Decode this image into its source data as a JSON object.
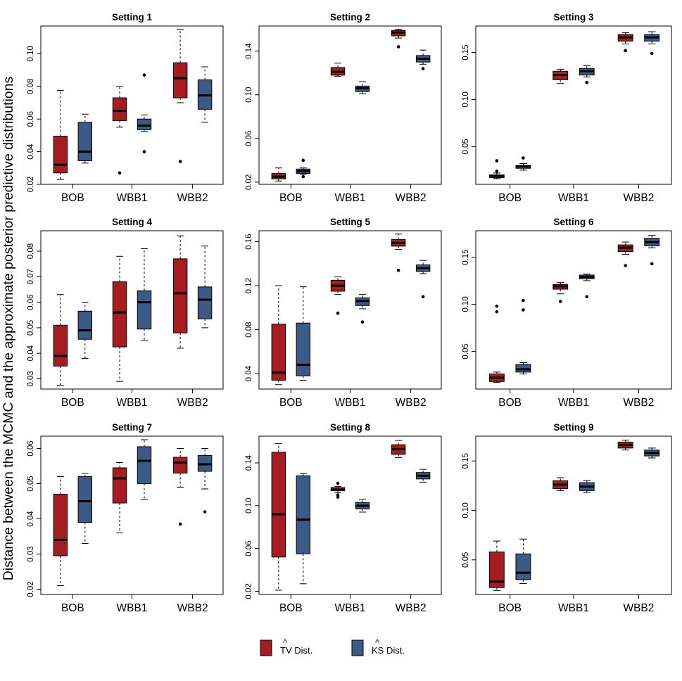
{
  "figure": {
    "ylabel": "Distance between the MCMC and the approximate posterior predictive distributions",
    "colors": {
      "tv": "#a51d20",
      "ks": "#3c5a85"
    }
  },
  "legend": {
    "placement": "bottom-center",
    "items": [
      {
        "label": "TV Dist.",
        "hat_over": "TV",
        "series": "tv"
      },
      {
        "label": "KS Dist.",
        "hat_over": "KS",
        "series": "ks"
      }
    ]
  },
  "chart_data": [
    {
      "type": "boxplot",
      "title": "Setting 1",
      "categories": [
        "BOB",
        "WBB1",
        "WBB2"
      ],
      "ylim": [
        0.02,
        0.117
      ],
      "yticks": [
        0.02,
        0.04,
        0.06,
        0.08,
        0.1
      ],
      "ytick_labels": [
        "0.02",
        "0.04",
        "0.06",
        "0.08",
        "0.10"
      ],
      "series": [
        {
          "name": "TV Dist.",
          "key": "tv",
          "boxes": [
            {
              "wlo": 0.023,
              "q1": 0.027,
              "med": 0.032,
              "q3": 0.0495,
              "whi": 0.0775,
              "out": []
            },
            {
              "wlo": 0.055,
              "q1": 0.059,
              "med": 0.065,
              "q3": 0.073,
              "whi": 0.08,
              "out": [
                0.027
              ]
            },
            {
              "wlo": 0.07,
              "q1": 0.073,
              "med": 0.085,
              "q3": 0.0945,
              "whi": 0.115,
              "out": [
                0.034
              ]
            }
          ]
        },
        {
          "name": "KS Dist.",
          "key": "ks",
          "boxes": [
            {
              "wlo": 0.033,
              "q1": 0.0345,
              "med": 0.04,
              "q3": 0.058,
              "whi": 0.063,
              "out": []
            },
            {
              "wlo": 0.0525,
              "q1": 0.0535,
              "med": 0.056,
              "q3": 0.06,
              "whi": 0.0625,
              "out": [
                0.04,
                0.087
              ]
            },
            {
              "wlo": 0.058,
              "q1": 0.066,
              "med": 0.0745,
              "q3": 0.084,
              "whi": 0.092,
              "out": []
            }
          ]
        }
      ]
    },
    {
      "type": "boxplot",
      "title": "Setting 2",
      "categories": [
        "BOB",
        "WBB1",
        "WBB2"
      ],
      "ylim": [
        0.018,
        0.163
      ],
      "yticks": [
        0.02,
        0.06,
        0.1,
        0.14
      ],
      "ytick_labels": [
        "0.02",
        "0.06",
        "0.10",
        "0.14"
      ],
      "series": [
        {
          "name": "TV Dist.",
          "key": "tv",
          "boxes": [
            {
              "wlo": 0.021,
              "q1": 0.023,
              "med": 0.025,
              "q3": 0.028,
              "whi": 0.033,
              "out": []
            },
            {
              "wlo": 0.117,
              "q1": 0.118,
              "med": 0.121,
              "q3": 0.125,
              "whi": 0.129,
              "out": []
            },
            {
              "wlo": 0.152,
              "q1": 0.154,
              "med": 0.157,
              "q3": 0.159,
              "whi": 0.16,
              "out": [
                0.144
              ]
            }
          ]
        },
        {
          "name": "KS Dist.",
          "key": "ks",
          "boxes": [
            {
              "wlo": 0.027,
              "q1": 0.028,
              "med": 0.03,
              "q3": 0.032,
              "whi": 0.033,
              "out": [
                0.025,
                0.04
              ]
            },
            {
              "wlo": 0.101,
              "q1": 0.103,
              "med": 0.106,
              "q3": 0.108,
              "whi": 0.112,
              "out": []
            },
            {
              "wlo": 0.128,
              "q1": 0.13,
              "med": 0.133,
              "q3": 0.136,
              "whi": 0.141,
              "out": [
                0.124
              ]
            }
          ]
        }
      ]
    },
    {
      "type": "boxplot",
      "title": "Setting 3",
      "categories": [
        "BOB",
        "WBB1",
        "WBB2"
      ],
      "ylim": [
        0.01,
        0.178
      ],
      "yticks": [
        0.05,
        0.1,
        0.15
      ],
      "ytick_labels": [
        "0.05",
        "0.10",
        "0.15"
      ],
      "series": [
        {
          "name": "TV Dist.",
          "key": "tv",
          "boxes": [
            {
              "wlo": 0.016,
              "q1": 0.017,
              "med": 0.019,
              "q3": 0.02,
              "whi": 0.022,
              "out": [
                0.024,
                0.035
              ]
            },
            {
              "wlo": 0.117,
              "q1": 0.121,
              "med": 0.126,
              "q3": 0.13,
              "whi": 0.132,
              "out": []
            },
            {
              "wlo": 0.159,
              "q1": 0.162,
              "med": 0.166,
              "q3": 0.169,
              "whi": 0.171,
              "out": [
                0.152
              ]
            }
          ]
        },
        {
          "name": "KS Dist.",
          "key": "ks",
          "boxes": [
            {
              "wlo": 0.025,
              "q1": 0.027,
              "med": 0.029,
              "q3": 0.03,
              "whi": 0.032,
              "out": [
                0.038
              ]
            },
            {
              "wlo": 0.124,
              "q1": 0.126,
              "med": 0.13,
              "q3": 0.133,
              "whi": 0.136,
              "out": [
                0.118
              ]
            },
            {
              "wlo": 0.159,
              "q1": 0.162,
              "med": 0.166,
              "q3": 0.169,
              "whi": 0.172,
              "out": [
                0.149
              ]
            }
          ]
        }
      ]
    },
    {
      "type": "boxplot",
      "title": "Setting 4",
      "categories": [
        "BOB",
        "WBB1",
        "WBB2"
      ],
      "ylim": [
        0.026,
        0.088
      ],
      "yticks": [
        0.03,
        0.04,
        0.05,
        0.06,
        0.07,
        0.08
      ],
      "ytick_labels": [
        "0.03",
        "0.04",
        "0.05",
        "0.06",
        "0.07",
        "0.08"
      ],
      "series": [
        {
          "name": "TV Dist.",
          "key": "tv",
          "boxes": [
            {
              "wlo": 0.0275,
              "q1": 0.035,
              "med": 0.039,
              "q3": 0.051,
              "whi": 0.063,
              "out": []
            },
            {
              "wlo": 0.029,
              "q1": 0.0425,
              "med": 0.056,
              "q3": 0.068,
              "whi": 0.078,
              "out": []
            },
            {
              "wlo": 0.042,
              "q1": 0.048,
              "med": 0.0635,
              "q3": 0.077,
              "whi": 0.086,
              "out": []
            }
          ]
        },
        {
          "name": "KS Dist.",
          "key": "ks",
          "boxes": [
            {
              "wlo": 0.038,
              "q1": 0.0455,
              "med": 0.049,
              "q3": 0.0565,
              "whi": 0.06,
              "out": []
            },
            {
              "wlo": 0.045,
              "q1": 0.0495,
              "med": 0.06,
              "q3": 0.0645,
              "whi": 0.081,
              "out": []
            },
            {
              "wlo": 0.05,
              "q1": 0.0535,
              "med": 0.061,
              "q3": 0.066,
              "whi": 0.082,
              "out": []
            }
          ]
        }
      ]
    },
    {
      "type": "boxplot",
      "title": "Setting 5",
      "categories": [
        "BOB",
        "WBB1",
        "WBB2"
      ],
      "ylim": [
        0.026,
        0.17
      ],
      "yticks": [
        0.04,
        0.08,
        0.12,
        0.16
      ],
      "ytick_labels": [
        "0.04",
        "0.08",
        "0.12",
        "0.16"
      ],
      "series": [
        {
          "name": "TV Dist.",
          "key": "tv",
          "boxes": [
            {
              "wlo": 0.03,
              "q1": 0.034,
              "med": 0.041,
              "q3": 0.085,
              "whi": 0.12,
              "out": []
            },
            {
              "wlo": 0.112,
              "q1": 0.115,
              "med": 0.12,
              "q3": 0.125,
              "whi": 0.128,
              "out": [
                0.095
              ]
            },
            {
              "wlo": 0.153,
              "q1": 0.156,
              "med": 0.159,
              "q3": 0.162,
              "whi": 0.167,
              "out": [
                0.134
              ]
            }
          ]
        },
        {
          "name": "KS Dist.",
          "key": "ks",
          "boxes": [
            {
              "wlo": 0.034,
              "q1": 0.038,
              "med": 0.048,
              "q3": 0.086,
              "whi": 0.119,
              "out": []
            },
            {
              "wlo": 0.099,
              "q1": 0.102,
              "med": 0.106,
              "q3": 0.109,
              "whi": 0.112,
              "out": [
                0.087
              ]
            },
            {
              "wlo": 0.131,
              "q1": 0.133,
              "med": 0.136,
              "q3": 0.139,
              "whi": 0.143,
              "out": [
                0.11
              ]
            }
          ]
        }
      ]
    },
    {
      "type": "boxplot",
      "title": "Setting 6",
      "categories": [
        "BOB",
        "WBB1",
        "WBB2"
      ],
      "ylim": [
        0.01,
        0.178
      ],
      "yticks": [
        0.05,
        0.1,
        0.15
      ],
      "ytick_labels": [
        "0.05",
        "0.10",
        "0.15"
      ],
      "series": [
        {
          "name": "TV Dist.",
          "key": "tv",
          "boxes": [
            {
              "wlo": 0.017,
              "q1": 0.018,
              "med": 0.022,
              "q3": 0.026,
              "whi": 0.028,
              "out": [
                0.092,
                0.098
              ]
            },
            {
              "wlo": 0.111,
              "q1": 0.116,
              "med": 0.119,
              "q3": 0.121,
              "whi": 0.123,
              "out": [
                0.103
              ]
            },
            {
              "wlo": 0.153,
              "q1": 0.156,
              "med": 0.16,
              "q3": 0.163,
              "whi": 0.166,
              "out": [
                0.141
              ]
            }
          ]
        },
        {
          "name": "KS Dist.",
          "key": "ks",
          "boxes": [
            {
              "wlo": 0.026,
              "q1": 0.028,
              "med": 0.031,
              "q3": 0.036,
              "whi": 0.038,
              "out": [
                0.094,
                0.104
              ]
            },
            {
              "wlo": 0.125,
              "q1": 0.127,
              "med": 0.129,
              "q3": 0.131,
              "whi": 0.132,
              "out": [
                0.108
              ]
            },
            {
              "wlo": 0.16,
              "q1": 0.162,
              "med": 0.166,
              "q3": 0.17,
              "whi": 0.173,
              "out": [
                0.143
              ]
            }
          ]
        }
      ]
    },
    {
      "type": "boxplot",
      "title": "Setting 7",
      "categories": [
        "BOB",
        "WBB1",
        "WBB2"
      ],
      "ylim": [
        0.0185,
        0.0635
      ],
      "yticks": [
        0.02,
        0.03,
        0.04,
        0.05,
        0.06
      ],
      "ytick_labels": [
        "0.02",
        "0.03",
        "0.04",
        "0.05",
        "0.06"
      ],
      "series": [
        {
          "name": "TV Dist.",
          "key": "tv",
          "boxes": [
            {
              "wlo": 0.021,
              "q1": 0.0295,
              "med": 0.034,
              "q3": 0.047,
              "whi": 0.052,
              "out": []
            },
            {
              "wlo": 0.036,
              "q1": 0.0445,
              "med": 0.0515,
              "q3": 0.0545,
              "whi": 0.056,
              "out": []
            },
            {
              "wlo": 0.049,
              "q1": 0.053,
              "med": 0.056,
              "q3": 0.0575,
              "whi": 0.06,
              "out": [
                0.0385
              ]
            }
          ]
        },
        {
          "name": "KS Dist.",
          "key": "ks",
          "boxes": [
            {
              "wlo": 0.033,
              "q1": 0.039,
              "med": 0.045,
              "q3": 0.052,
              "whi": 0.053,
              "out": []
            },
            {
              "wlo": 0.0455,
              "q1": 0.05,
              "med": 0.0565,
              "q3": 0.0605,
              "whi": 0.0625,
              "out": []
            },
            {
              "wlo": 0.0485,
              "q1": 0.0535,
              "med": 0.0555,
              "q3": 0.058,
              "whi": 0.06,
              "out": [
                0.042
              ]
            }
          ]
        }
      ]
    },
    {
      "type": "boxplot",
      "title": "Setting 8",
      "categories": [
        "BOB",
        "WBB1",
        "WBB2"
      ],
      "ylim": [
        0.017,
        0.165
      ],
      "yticks": [
        0.02,
        0.06,
        0.1,
        0.14
      ],
      "ytick_labels": [
        "0.02",
        "0.06",
        "0.10",
        "0.14"
      ],
      "series": [
        {
          "name": "TV Dist.",
          "key": "tv",
          "boxes": [
            {
              "wlo": 0.021,
              "q1": 0.052,
              "med": 0.092,
              "q3": 0.15,
              "whi": 0.158,
              "out": []
            },
            {
              "wlo": 0.112,
              "q1": 0.114,
              "med": 0.115,
              "q3": 0.117,
              "whi": 0.118,
              "out": [
                0.108,
                0.11,
                0.121
              ]
            },
            {
              "wlo": 0.145,
              "q1": 0.148,
              "med": 0.153,
              "q3": 0.157,
              "whi": 0.161,
              "out": []
            }
          ]
        },
        {
          "name": "KS Dist.",
          "key": "ks",
          "boxes": [
            {
              "wlo": 0.027,
              "q1": 0.055,
              "med": 0.087,
              "q3": 0.128,
              "whi": 0.13,
              "out": []
            },
            {
              "wlo": 0.094,
              "q1": 0.097,
              "med": 0.1,
              "q3": 0.103,
              "whi": 0.106,
              "out": []
            },
            {
              "wlo": 0.122,
              "q1": 0.125,
              "med": 0.128,
              "q3": 0.131,
              "whi": 0.134,
              "out": []
            }
          ]
        }
      ]
    },
    {
      "type": "boxplot",
      "title": "Setting 9",
      "categories": [
        "BOB",
        "WBB1",
        "WBB2"
      ],
      "ylim": [
        0.015,
        0.175
      ],
      "yticks": [
        0.05,
        0.1,
        0.15
      ],
      "ytick_labels": [
        "0.05",
        "0.10",
        "0.15"
      ],
      "series": [
        {
          "name": "TV Dist.",
          "key": "tv",
          "boxes": [
            {
              "wlo": 0.019,
              "q1": 0.022,
              "med": 0.028,
              "q3": 0.058,
              "whi": 0.069,
              "out": []
            },
            {
              "wlo": 0.12,
              "q1": 0.122,
              "med": 0.126,
              "q3": 0.13,
              "whi": 0.133,
              "out": []
            },
            {
              "wlo": 0.161,
              "q1": 0.163,
              "med": 0.166,
              "q3": 0.169,
              "whi": 0.171,
              "out": []
            }
          ]
        },
        {
          "name": "KS Dist.",
          "key": "ks",
          "boxes": [
            {
              "wlo": 0.026,
              "q1": 0.03,
              "med": 0.037,
              "q3": 0.056,
              "whi": 0.071,
              "out": []
            },
            {
              "wlo": 0.118,
              "q1": 0.12,
              "med": 0.124,
              "q3": 0.128,
              "whi": 0.13,
              "out": []
            },
            {
              "wlo": 0.153,
              "q1": 0.155,
              "med": 0.158,
              "q3": 0.161,
              "whi": 0.163,
              "out": []
            }
          ]
        }
      ]
    }
  ]
}
